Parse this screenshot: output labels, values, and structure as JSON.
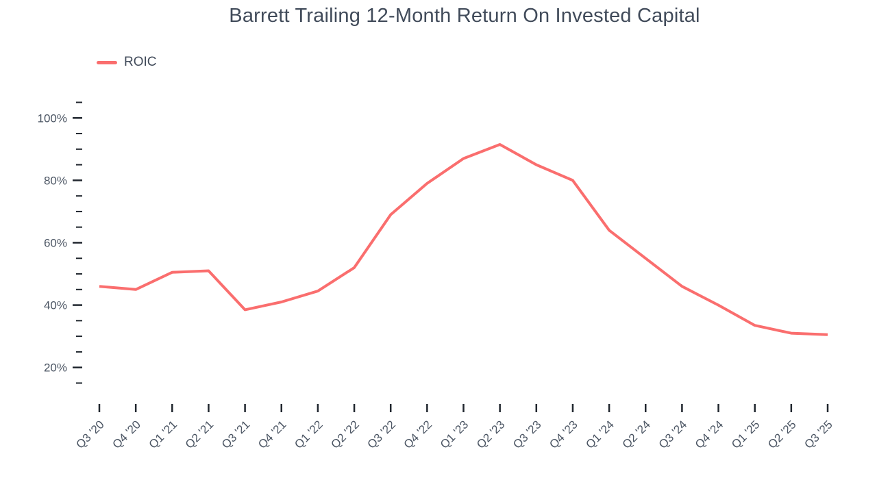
{
  "title": "Barrett Trailing 12-Month Return On Invested Capital",
  "legend": {
    "items": [
      {
        "label": "ROIC",
        "color": "#fa6e6e"
      }
    ]
  },
  "chart_data": {
    "type": "line",
    "title": "Barrett Trailing 12-Month Return On Invested Capital",
    "categories": [
      "Q3 '20",
      "Q4 '20",
      "Q1 '21",
      "Q2 '21",
      "Q3 '21",
      "Q4 '21",
      "Q1 '22",
      "Q2 '22",
      "Q3 '22",
      "Q4 '22",
      "Q1 '23",
      "Q2 '23",
      "Q3 '23",
      "Q4 '23",
      "Q1 '24",
      "Q2 '24",
      "Q3 '24",
      "Q4 '24",
      "Q1 '25",
      "Q2 '25",
      "Q3 '25"
    ],
    "series": [
      {
        "name": "ROIC",
        "color": "#fa6e6e",
        "values": [
          46,
          45,
          50.5,
          51,
          38.5,
          41,
          44.5,
          52,
          69,
          79,
          87,
          91.5,
          85,
          80,
          64,
          55,
          46,
          40,
          33.5,
          31,
          30.5
        ]
      }
    ],
    "xlabel": "",
    "ylabel": "",
    "y_unit": "%",
    "ylim": [
      15,
      105
    ],
    "y_major_ticks": [
      20,
      40,
      60,
      80,
      100
    ],
    "y_major_tick_labels": [
      "20%",
      "40%",
      "60%",
      "80%",
      "100%"
    ],
    "y_minor_tick_step": 5,
    "grid": false,
    "legend_position": "top-left",
    "tick_color": "#20262e",
    "label_color": "#4b5563"
  }
}
